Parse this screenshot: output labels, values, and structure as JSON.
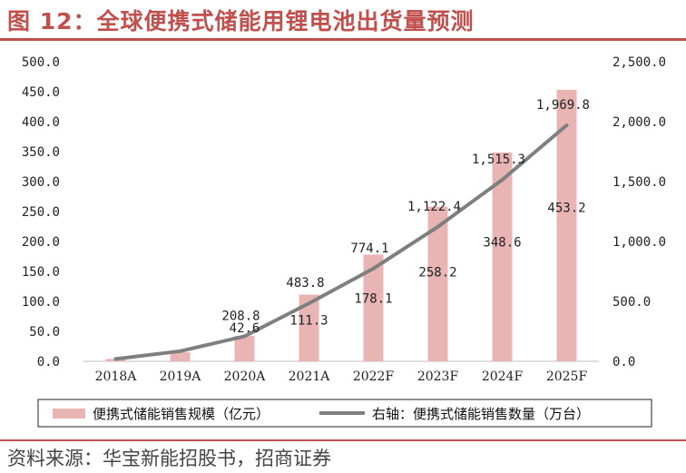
{
  "title": "图 12：全球便携式储能用锂电池出货量预测",
  "source": "资料来源：华宝新能招股书，招商证券",
  "colors": {
    "bar": "#e8b4b4",
    "line": "#7f7f7f",
    "accent": "#c0504d"
  },
  "chart_data": {
    "type": "bar",
    "categories": [
      "2018A",
      "2019A",
      "2020A",
      "2021A",
      "2022F",
      "2023F",
      "2024F",
      "2025F"
    ],
    "left_axis": {
      "ticks": [
        "0.0",
        "50.0",
        "100.0",
        "150.0",
        "200.0",
        "250.0",
        "300.0",
        "350.0",
        "400.0",
        "450.0",
        "500.0"
      ],
      "ylim": [
        0,
        500
      ]
    },
    "right_axis": {
      "ticks": [
        "0.0",
        "500.0",
        "1,000.0",
        "1,500.0",
        "2,000.0",
        "2,500.0"
      ],
      "ylim": [
        0,
        2500
      ]
    },
    "series": [
      {
        "name": "便携式储能销售规模（亿元）",
        "type": "bar",
        "axis": "left",
        "values": [
          4,
          15,
          42.6,
          111.3,
          178.1,
          258.2,
          348.6,
          453.2
        ],
        "labels": [
          "",
          "",
          "42.6",
          "111.3",
          "178.1",
          "258.2",
          "348.6",
          "453.2"
        ]
      },
      {
        "name": "右轴：便携式储能销售数量（万台）",
        "type": "line",
        "axis": "right",
        "values": [
          20,
          85,
          208.8,
          483.8,
          774.1,
          1122.4,
          1515.3,
          1969.8
        ],
        "labels": [
          "",
          "",
          "208.8",
          "483.8",
          "774.1",
          "1,122.4",
          "1,515.3",
          "1,969.8"
        ]
      }
    ]
  }
}
